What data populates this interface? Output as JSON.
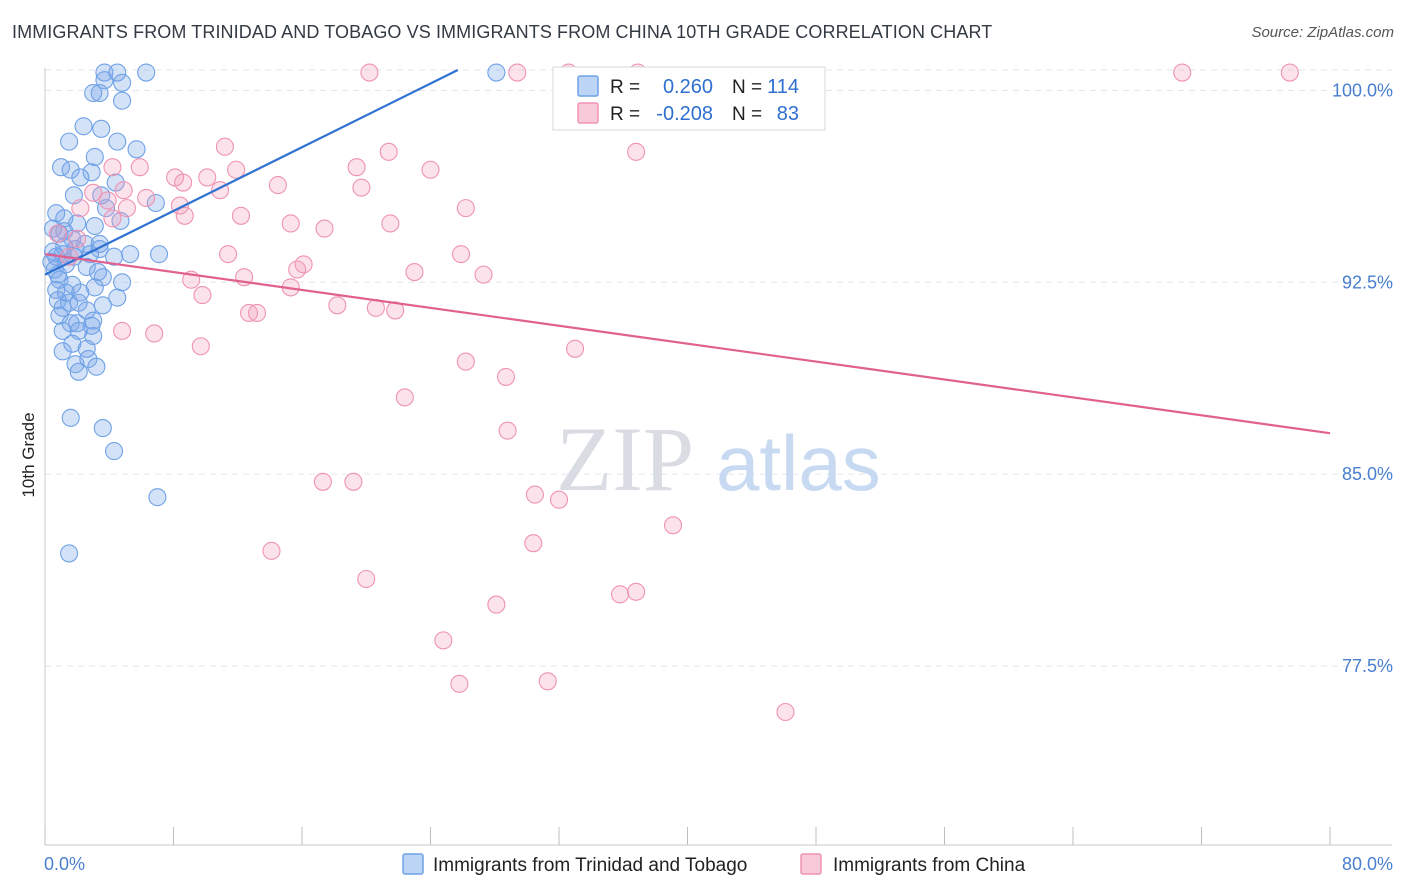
{
  "header": {
    "title": "IMMIGRANTS FROM TRINIDAD AND TOBAGO VS IMMIGRANTS FROM CHINA 10TH GRADE CORRELATION CHART",
    "source": "Source: ZipAtlas.com"
  },
  "watermark": {
    "zip": "ZIP",
    "atlas": "atlas"
  },
  "stats_legend": [
    {
      "r_label": "R =",
      "r_value": "0.260",
      "n_label": "N =",
      "n_value": "114",
      "color": "#6fa2e6"
    },
    {
      "r_label": "R =",
      "r_value": "-0.208",
      "n_label": "N =",
      "n_value": "83",
      "color": "#ef93b2"
    }
  ],
  "chart_data": {
    "type": "scatter",
    "title": "IMMIGRANTS FROM TRINIDAD AND TOBAGO VS IMMIGRANTS FROM CHINA 10TH GRADE CORRELATION CHART",
    "xlabel": "",
    "ylabel": "10th Grade",
    "xlim": [
      0,
      80
    ],
    "ylim": [
      70.5,
      100.8
    ],
    "x_tick_labels": [
      "0.0%",
      "80.0%"
    ],
    "y_ticks": [
      77.5,
      85.0,
      92.5,
      100.0
    ],
    "y_tick_labels": [
      "77.5%",
      "85.0%",
      "92.5%",
      "100.0%"
    ],
    "grid": true,
    "legend_position": "bottom",
    "series": [
      {
        "name": "Immigrants from Trinidad and Tobago",
        "color": "#6fa2e6",
        "line_color": "#2f72d1",
        "trend": {
          "x": [
            0.0,
            25.7
          ],
          "y": [
            92.8,
            100.8
          ]
        },
        "points": [
          [
            3.7,
            100.7
          ],
          [
            4.5,
            100.7
          ],
          [
            6.3,
            100.7
          ],
          [
            28.1,
            100.7
          ],
          [
            3.7,
            100.4
          ],
          [
            4.8,
            100.3
          ],
          [
            3.0,
            99.9
          ],
          [
            3.4,
            99.9
          ],
          [
            4.8,
            99.6
          ],
          [
            2.4,
            98.6
          ],
          [
            3.5,
            98.5
          ],
          [
            1.5,
            98.0
          ],
          [
            4.5,
            98.0
          ],
          [
            5.7,
            97.7
          ],
          [
            3.1,
            97.4
          ],
          [
            1.0,
            97.0
          ],
          [
            1.6,
            96.9
          ],
          [
            2.9,
            96.8
          ],
          [
            2.2,
            96.6
          ],
          [
            4.4,
            96.4
          ],
          [
            1.8,
            95.9
          ],
          [
            3.5,
            95.9
          ],
          [
            6.9,
            95.6
          ],
          [
            3.8,
            95.4
          ],
          [
            0.7,
            95.2
          ],
          [
            1.2,
            95.0
          ],
          [
            4.7,
            94.9
          ],
          [
            2.0,
            94.8
          ],
          [
            3.1,
            94.7
          ],
          [
            0.5,
            94.6
          ],
          [
            1.2,
            94.5
          ],
          [
            0.9,
            94.4
          ],
          [
            1.7,
            94.2
          ],
          [
            2.5,
            94.0
          ],
          [
            3.4,
            94.0
          ],
          [
            1.2,
            93.9
          ],
          [
            1.9,
            93.8
          ],
          [
            3.4,
            93.8
          ],
          [
            0.5,
            93.7
          ],
          [
            1.1,
            93.6
          ],
          [
            2.8,
            93.6
          ],
          [
            5.3,
            93.6
          ],
          [
            7.1,
            93.6
          ],
          [
            0.7,
            93.5
          ],
          [
            1.8,
            93.5
          ],
          [
            4.3,
            93.5
          ],
          [
            0.4,
            93.3
          ],
          [
            1.3,
            93.2
          ],
          [
            2.6,
            93.1
          ],
          [
            0.6,
            93.0
          ],
          [
            3.3,
            92.9
          ],
          [
            0.8,
            92.8
          ],
          [
            3.6,
            92.7
          ],
          [
            0.9,
            92.6
          ],
          [
            4.8,
            92.5
          ],
          [
            1.7,
            92.4
          ],
          [
            3.1,
            92.3
          ],
          [
            0.7,
            92.2
          ],
          [
            1.3,
            92.1
          ],
          [
            2.2,
            92.1
          ],
          [
            4.5,
            91.9
          ],
          [
            0.8,
            91.8
          ],
          [
            1.5,
            91.7
          ],
          [
            2.1,
            91.7
          ],
          [
            3.6,
            91.6
          ],
          [
            1.1,
            91.5
          ],
          [
            2.6,
            91.4
          ],
          [
            0.9,
            91.2
          ],
          [
            3.0,
            91.0
          ],
          [
            1.6,
            90.9
          ],
          [
            2.0,
            90.9
          ],
          [
            2.9,
            90.8
          ],
          [
            1.1,
            90.6
          ],
          [
            2.1,
            90.6
          ],
          [
            3.0,
            90.4
          ],
          [
            1.7,
            90.1
          ],
          [
            2.6,
            89.9
          ],
          [
            1.1,
            89.8
          ],
          [
            2.7,
            89.5
          ],
          [
            1.9,
            89.3
          ],
          [
            3.2,
            89.2
          ],
          [
            2.1,
            89.0
          ],
          [
            1.6,
            87.2
          ],
          [
            3.6,
            86.8
          ],
          [
            4.3,
            85.9
          ],
          [
            7.0,
            84.1
          ],
          [
            1.5,
            81.9
          ]
        ]
      },
      {
        "name": "Immigrants from China",
        "color": "#ef93b2",
        "line_color": "#e0608f",
        "trend": {
          "x": [
            0.0,
            80.0
          ],
          "y": [
            93.6,
            86.6
          ]
        },
        "points": [
          [
            20.2,
            100.7
          ],
          [
            29.4,
            100.7
          ],
          [
            32.6,
            100.7
          ],
          [
            36.9,
            100.7
          ],
          [
            70.8,
            100.7
          ],
          [
            77.5,
            100.7
          ],
          [
            11.2,
            97.8
          ],
          [
            21.4,
            97.6
          ],
          [
            36.8,
            97.6
          ],
          [
            4.2,
            97.0
          ],
          [
            5.9,
            97.0
          ],
          [
            19.4,
            97.0
          ],
          [
            11.9,
            96.9
          ],
          [
            24.0,
            96.9
          ],
          [
            8.1,
            96.6
          ],
          [
            10.1,
            96.6
          ],
          [
            8.6,
            96.4
          ],
          [
            14.5,
            96.3
          ],
          [
            19.7,
            96.2
          ],
          [
            4.9,
            96.1
          ],
          [
            10.9,
            96.1
          ],
          [
            3.0,
            96.0
          ],
          [
            6.3,
            95.8
          ],
          [
            3.9,
            95.7
          ],
          [
            8.4,
            95.5
          ],
          [
            2.2,
            95.4
          ],
          [
            5.1,
            95.4
          ],
          [
            26.2,
            95.4
          ],
          [
            8.7,
            95.1
          ],
          [
            12.2,
            95.1
          ],
          [
            4.2,
            95.0
          ],
          [
            15.3,
            94.8
          ],
          [
            21.5,
            94.8
          ],
          [
            17.4,
            94.6
          ],
          [
            0.8,
            94.4
          ],
          [
            2.0,
            94.2
          ],
          [
            11.4,
            93.6
          ],
          [
            25.9,
            93.6
          ],
          [
            1.5,
            93.5
          ],
          [
            16.1,
            93.2
          ],
          [
            15.7,
            93.0
          ],
          [
            23.0,
            92.9
          ],
          [
            27.3,
            92.8
          ],
          [
            12.4,
            92.7
          ],
          [
            9.1,
            92.6
          ],
          [
            15.3,
            92.3
          ],
          [
            9.8,
            92.0
          ],
          [
            18.2,
            91.6
          ],
          [
            20.6,
            91.5
          ],
          [
            21.8,
            91.4
          ],
          [
            12.7,
            91.3
          ],
          [
            13.2,
            91.3
          ],
          [
            4.8,
            90.6
          ],
          [
            6.8,
            90.5
          ],
          [
            9.7,
            90.0
          ],
          [
            33.0,
            89.9
          ],
          [
            26.2,
            89.4
          ],
          [
            28.7,
            88.8
          ],
          [
            22.4,
            88.0
          ],
          [
            28.8,
            86.7
          ],
          [
            17.3,
            84.7
          ],
          [
            19.2,
            84.7
          ],
          [
            30.5,
            84.2
          ],
          [
            32.0,
            84.0
          ],
          [
            39.1,
            83.0
          ],
          [
            30.4,
            82.3
          ],
          [
            14.1,
            82.0
          ],
          [
            20.0,
            80.9
          ],
          [
            35.8,
            80.3
          ],
          [
            36.8,
            80.4
          ],
          [
            28.1,
            79.9
          ],
          [
            24.8,
            78.5
          ],
          [
            25.8,
            76.8
          ],
          [
            31.3,
            76.9
          ],
          [
            46.1,
            75.7
          ]
        ]
      }
    ]
  },
  "bottom_legend": [
    {
      "label": "Immigrants from Trinidad and Tobago",
      "color": "#6fa2e6"
    },
    {
      "label": "Immigrants from China",
      "color": "#ef93b2"
    }
  ]
}
